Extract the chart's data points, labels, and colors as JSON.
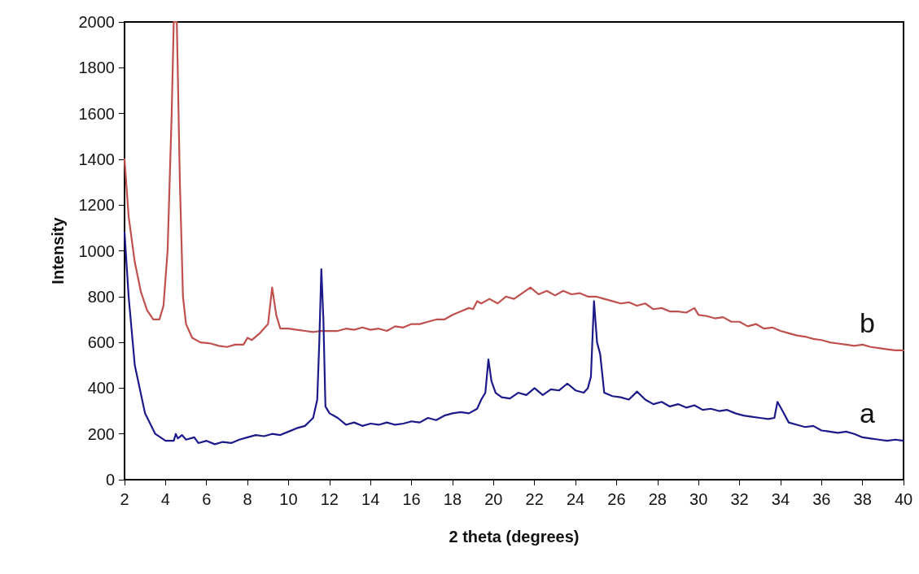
{
  "chart_data": {
    "type": "line",
    "xlabel": "2 theta (degrees)",
    "ylabel": "Intensity",
    "xlim": [
      2,
      40
    ],
    "xticks": [
      2,
      4,
      6,
      8,
      10,
      12,
      14,
      16,
      18,
      20,
      22,
      24,
      26,
      28,
      30,
      32,
      34,
      36,
      38,
      40
    ],
    "ylim": [
      0,
      2000
    ],
    "yticks": [
      0,
      200,
      400,
      600,
      800,
      1000,
      1200,
      1400,
      1600,
      1800,
      2000
    ],
    "grid": false,
    "legend": false,
    "marker": "none",
    "line_style": "solid",
    "series": [
      {
        "name": "b",
        "color": "#c0504d",
        "x": [
          2.0,
          2.2,
          2.5,
          2.8,
          3.1,
          3.4,
          3.7,
          3.9,
          4.1,
          4.3,
          4.4,
          4.55,
          4.7,
          4.85,
          5.0,
          5.3,
          5.7,
          6.2,
          6.6,
          7.0,
          7.4,
          7.8,
          8.0,
          8.2,
          8.6,
          9.0,
          9.2,
          9.4,
          9.6,
          10.0,
          10.4,
          10.8,
          11.2,
          11.6,
          12.0,
          12.4,
          12.8,
          13.2,
          13.6,
          14.0,
          14.4,
          14.8,
          15.2,
          15.6,
          16.0,
          16.4,
          16.8,
          17.2,
          17.6,
          18.0,
          18.4,
          18.8,
          19.0,
          19.2,
          19.4,
          19.8,
          20.2,
          20.6,
          21.0,
          21.4,
          21.8,
          22.2,
          22.6,
          23.0,
          23.4,
          23.8,
          24.2,
          24.6,
          25.0,
          25.4,
          25.8,
          26.2,
          26.6,
          27.0,
          27.4,
          27.8,
          28.2,
          28.6,
          29.0,
          29.4,
          29.8,
          30.0,
          30.4,
          30.8,
          31.2,
          31.6,
          32.0,
          32.4,
          32.8,
          33.2,
          33.6,
          34.0,
          34.4,
          34.8,
          35.2,
          35.6,
          36.0,
          36.4,
          36.8,
          37.2,
          37.6,
          38.0,
          38.4,
          38.8,
          39.2,
          39.6,
          40
        ],
        "values": [
          1400,
          1150,
          950,
          820,
          740,
          700,
          700,
          760,
          1000,
          1600,
          2000,
          2000,
          1300,
          800,
          680,
          620,
          600,
          595,
          585,
          580,
          590,
          590,
          620,
          610,
          640,
          680,
          840,
          720,
          660,
          660,
          655,
          650,
          645,
          650,
          650,
          650,
          660,
          655,
          665,
          655,
          660,
          650,
          670,
          665,
          680,
          680,
          690,
          700,
          700,
          720,
          735,
          750,
          745,
          780,
          770,
          790,
          770,
          800,
          790,
          815,
          840,
          810,
          825,
          805,
          825,
          810,
          815,
          800,
          800,
          790,
          780,
          770,
          775,
          760,
          770,
          745,
          750,
          735,
          735,
          730,
          750,
          720,
          715,
          705,
          710,
          690,
          690,
          670,
          680,
          660,
          665,
          650,
          640,
          630,
          625,
          615,
          610,
          600,
          595,
          590,
          585,
          590,
          580,
          575,
          570,
          565,
          565
        ]
      },
      {
        "name": "a",
        "color": "#1c1a8a",
        "x": [
          2.0,
          2.2,
          2.5,
          3.0,
          3.5,
          4.0,
          4.4,
          4.5,
          4.6,
          4.8,
          5.0,
          5.4,
          5.6,
          6.0,
          6.4,
          6.8,
          7.2,
          7.6,
          8.0,
          8.4,
          8.8,
          9.2,
          9.6,
          10.0,
          10.4,
          10.8,
          11.2,
          11.4,
          11.5,
          11.6,
          11.7,
          11.8,
          12.0,
          12.4,
          12.8,
          13.2,
          13.6,
          14.0,
          14.4,
          14.8,
          15.2,
          15.6,
          16.0,
          16.4,
          16.8,
          17.2,
          17.6,
          18.0,
          18.4,
          18.8,
          19.2,
          19.4,
          19.6,
          19.75,
          19.9,
          20.1,
          20.4,
          20.8,
          21.2,
          21.6,
          22.0,
          22.4,
          22.8,
          23.2,
          23.6,
          24.0,
          24.4,
          24.6,
          24.75,
          24.9,
          25.05,
          25.2,
          25.4,
          25.8,
          26.2,
          26.6,
          27.0,
          27.4,
          27.8,
          28.2,
          28.6,
          29.0,
          29.4,
          29.8,
          30.2,
          30.6,
          31.0,
          31.4,
          31.8,
          32.2,
          32.6,
          33.0,
          33.4,
          33.7,
          33.85,
          34.1,
          34.4,
          34.8,
          35.2,
          35.6,
          36.0,
          36.4,
          36.8,
          37.2,
          37.6,
          38.0,
          38.4,
          38.8,
          39.2,
          39.6,
          40
        ],
        "values": [
          1080,
          800,
          500,
          290,
          200,
          170,
          170,
          200,
          180,
          195,
          175,
          185,
          160,
          170,
          155,
          165,
          160,
          175,
          185,
          195,
          190,
          200,
          195,
          210,
          225,
          235,
          270,
          350,
          600,
          920,
          700,
          320,
          290,
          270,
          240,
          250,
          235,
          245,
          240,
          250,
          240,
          245,
          255,
          250,
          270,
          260,
          280,
          290,
          295,
          290,
          310,
          350,
          380,
          525,
          430,
          380,
          360,
          355,
          380,
          370,
          400,
          370,
          395,
          390,
          420,
          390,
          380,
          400,
          450,
          780,
          600,
          550,
          380,
          365,
          360,
          350,
          385,
          350,
          330,
          340,
          320,
          330,
          315,
          325,
          305,
          310,
          300,
          305,
          290,
          280,
          275,
          270,
          265,
          270,
          340,
          300,
          250,
          240,
          230,
          235,
          215,
          210,
          205,
          210,
          200,
          185,
          180,
          175,
          170,
          175,
          170
        ]
      }
    ]
  }
}
